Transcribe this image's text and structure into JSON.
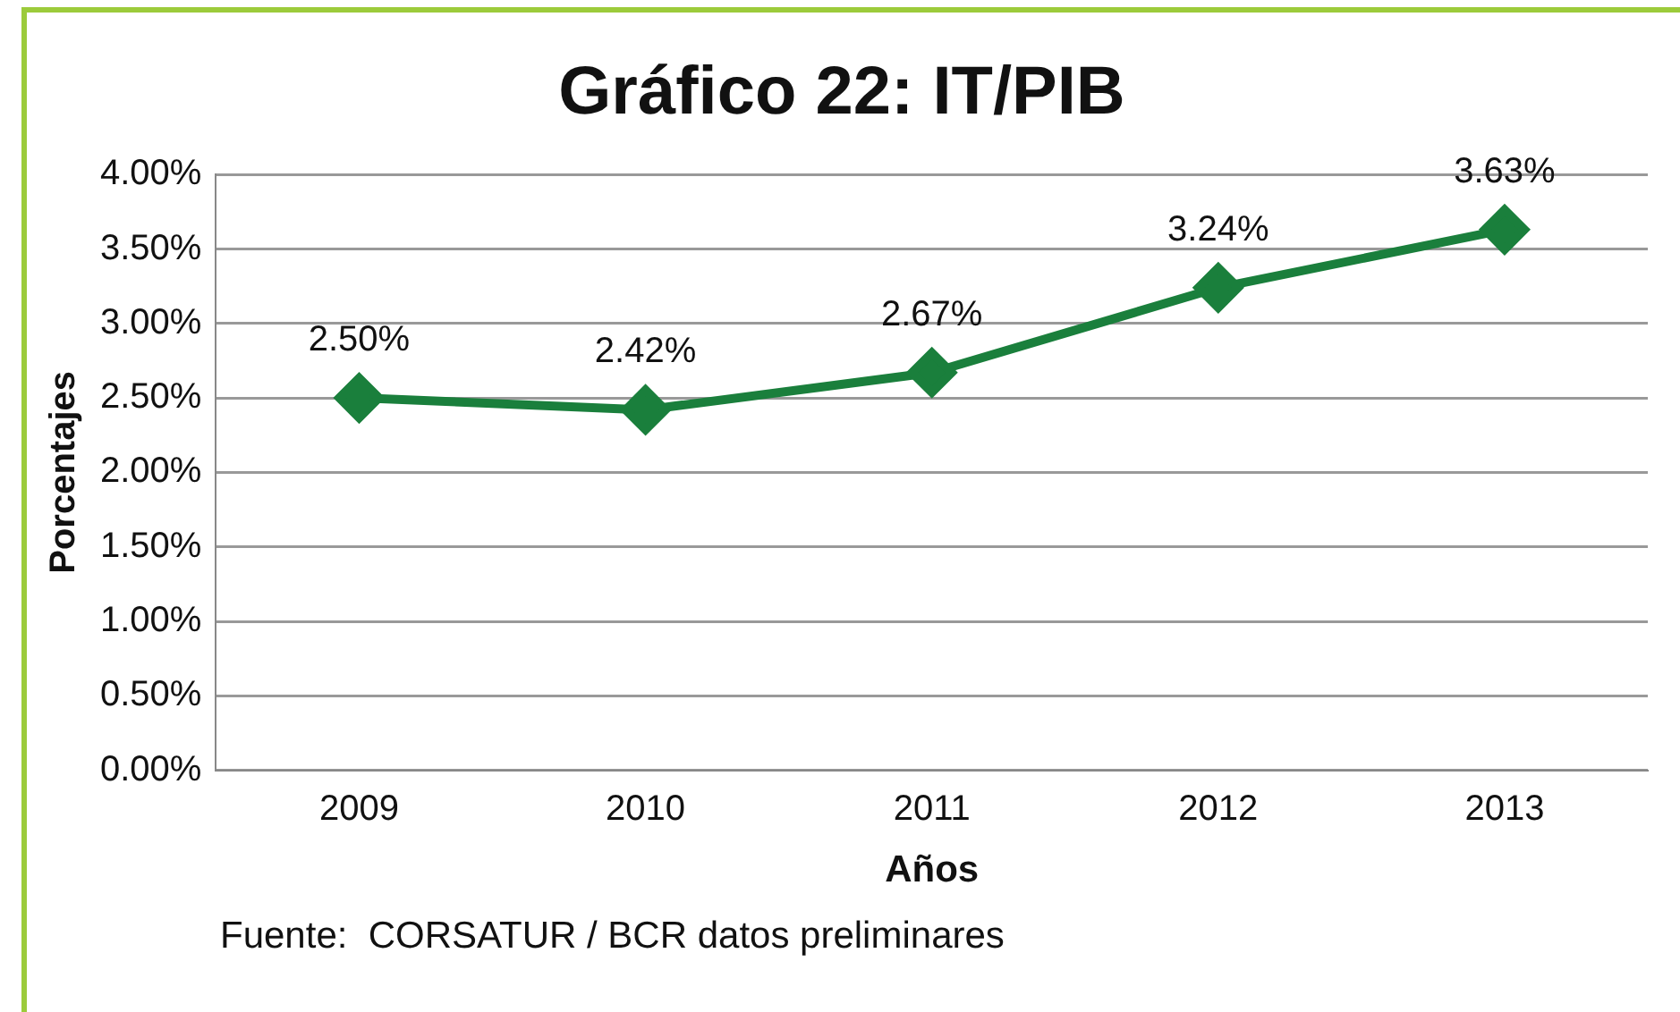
{
  "chart_data": {
    "type": "line",
    "title": "Gráfico 22: IT/PIB",
    "xlabel": "Años",
    "ylabel": "Porcentajes",
    "categories": [
      "2009",
      "2010",
      "2011",
      "2012",
      "2013"
    ],
    "series": [
      {
        "color": "#1a7f3c",
        "values": [
          2.5,
          2.42,
          2.67,
          3.24,
          3.63
        ]
      }
    ],
    "value_labels": [
      "2.50%",
      "2.42%",
      "2.67%",
      "3.24%",
      "3.63%"
    ],
    "ylim": [
      0,
      4
    ],
    "yticks": [
      {
        "value": 0,
        "label": "0.00%"
      },
      {
        "value": 0.5,
        "label": "0.50%"
      },
      {
        "value": 1,
        "label": "1.00%"
      },
      {
        "value": 1.5,
        "label": "1.50%"
      },
      {
        "value": 2,
        "label": "2.00%"
      },
      {
        "value": 2.5,
        "label": "2.50%"
      },
      {
        "value": 3,
        "label": "3.00%"
      },
      {
        "value": 3.5,
        "label": "3.50%"
      },
      {
        "value": 4,
        "label": "4.00%"
      }
    ],
    "grid": "y",
    "legend": false,
    "marker": "diamond",
    "line_style": "solid",
    "annotations": [
      "Fuente:  CORSATUR / BCR datos preliminares"
    ]
  }
}
